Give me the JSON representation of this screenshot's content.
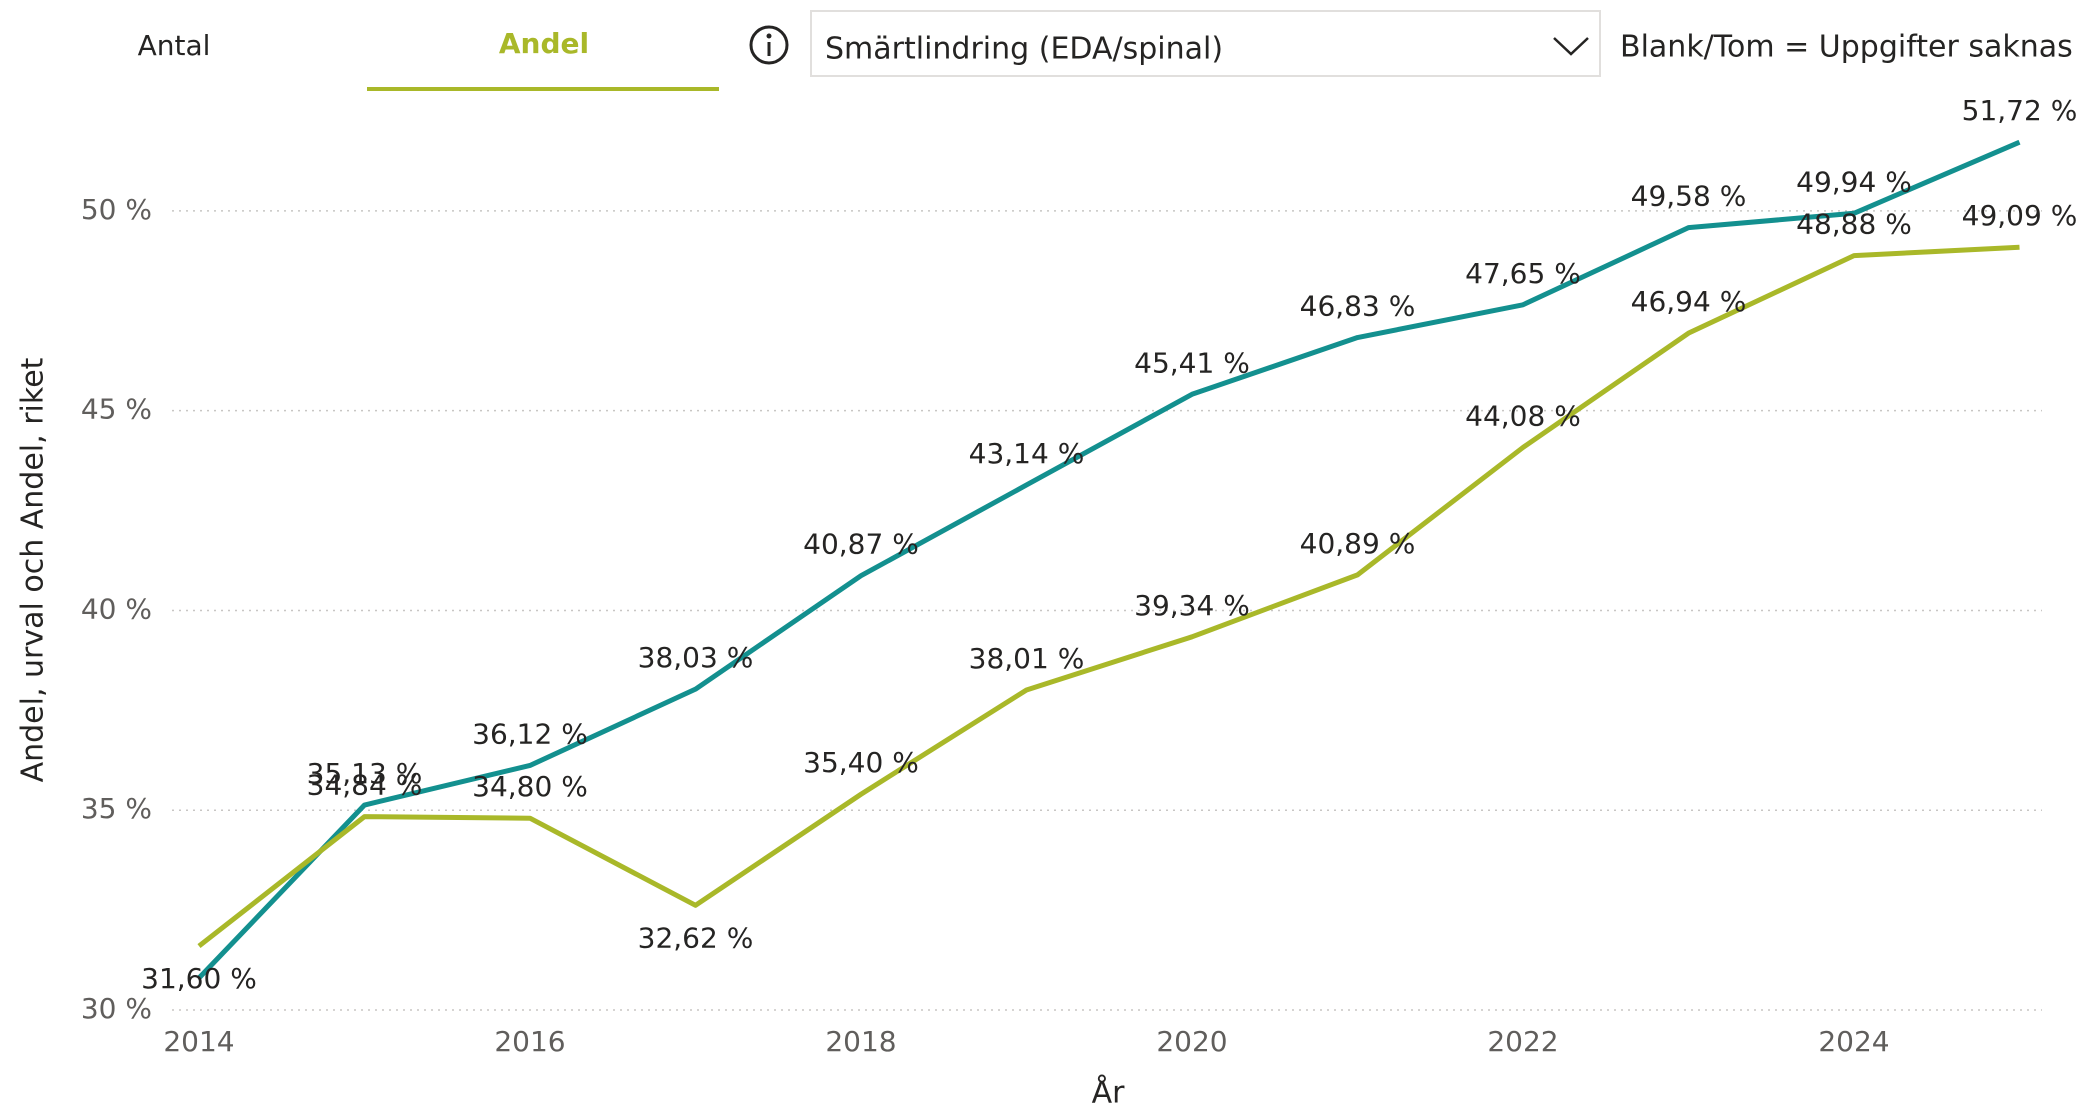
{
  "ui": {
    "tabs": [
      "Antal",
      "Andel"
    ],
    "active_tab": 1,
    "dropdown": "Smärtlindring (EDA/spinal)",
    "note": "Blank/Tom = Uppgifter saknas"
  },
  "chart_data": {
    "type": "line",
    "x_label": "År",
    "y_label": "Andel, urval och Andel, riket",
    "x": [
      2014,
      2015,
      2016,
      2017,
      2018,
      2019,
      2020,
      2021,
      2022,
      2023,
      2024,
      2025
    ],
    "xlim": [
      2014,
      2025
    ],
    "xticks": [
      2014,
      2016,
      2018,
      2020,
      2022,
      2024
    ],
    "ylim": [
      30,
      52.5
    ],
    "yticks": [
      {
        "value": 30,
        "label": "30 %"
      },
      {
        "value": 35,
        "label": "35 %"
      },
      {
        "value": 40,
        "label": "40 %"
      },
      {
        "value": 45,
        "label": "45 %"
      },
      {
        "value": 50,
        "label": "50 %"
      }
    ],
    "grid": true,
    "series": [
      {
        "color": "#13908f",
        "values": [
          30.8,
          35.13,
          36.12,
          38.03,
          40.87,
          43.14,
          45.41,
          46.83,
          47.65,
          49.58,
          49.94,
          51.72
        ],
        "value_labels": [
          null,
          "35,13 %",
          "36,12 %",
          "38,03 %",
          "40,87 %",
          "43,14 %",
          "45,41 %",
          "46,83 %",
          "47,65 %",
          "49,58 %",
          "49,94 %",
          "51,72 %"
        ]
      },
      {
        "color": "#a9b829",
        "values": [
          31.6,
          34.84,
          34.8,
          32.62,
          35.4,
          38.01,
          39.34,
          40.89,
          44.08,
          46.94,
          48.88,
          49.09
        ],
        "value_labels": [
          "31,60 %",
          "34,84 %",
          "34,80 %",
          "32,62 %",
          "35,40 %",
          "38,01 %",
          "39,34 %",
          "40,89 %",
          "44,08 %",
          "46,94 %",
          "48,88 %",
          "49,09 %"
        ]
      }
    ]
  }
}
